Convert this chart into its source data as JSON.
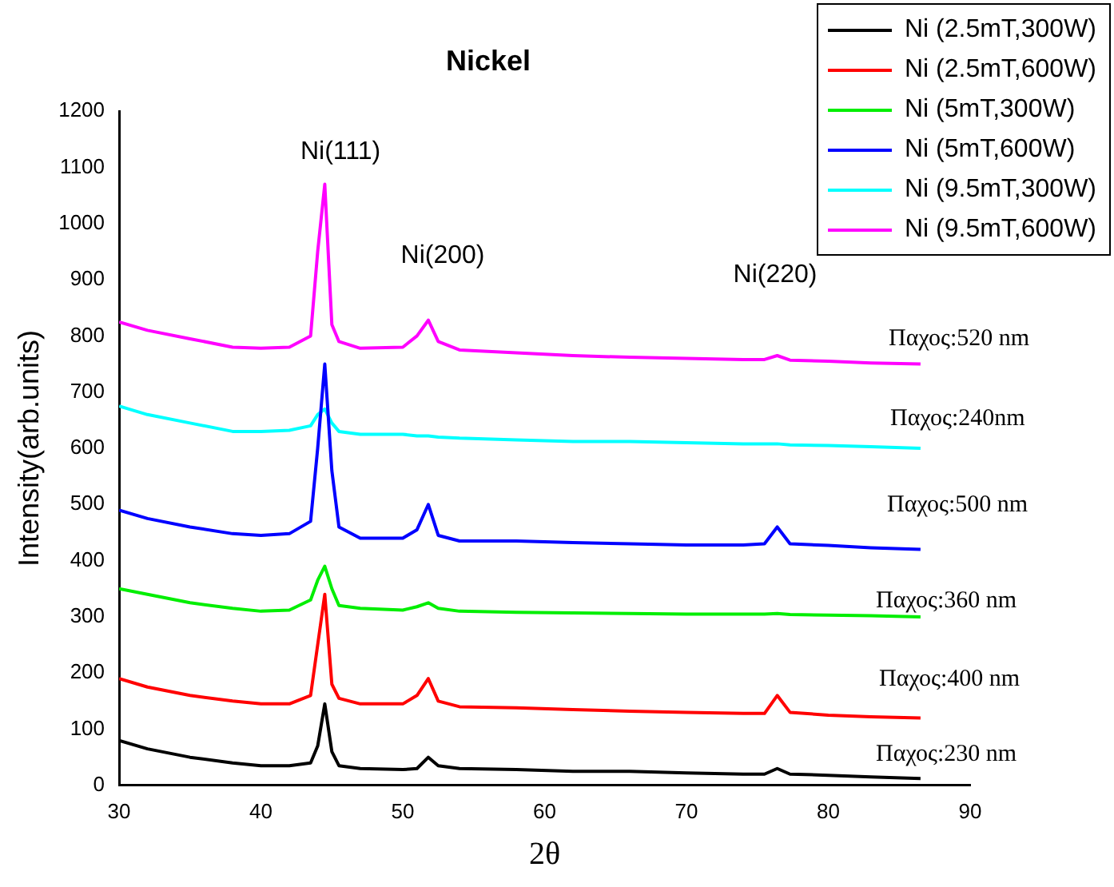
{
  "chart_data": {
    "type": "line",
    "title": "Nickel",
    "xlabel": "2θ",
    "ylabel": "Intensity(arb.units)",
    "x": [
      30,
      32,
      35,
      38,
      40,
      42,
      43.5,
      44,
      44.5,
      45,
      45.5,
      47,
      50,
      51,
      51.8,
      52.5,
      54,
      58,
      62,
      66,
      70,
      74,
      75.5,
      76.4,
      77.3,
      80,
      83,
      86.5
    ],
    "series": [
      {
        "name": "Ni (2.5mT,300W)",
        "color": "#000000",
        "values": [
          80,
          65,
          50,
          40,
          35,
          35,
          40,
          70,
          145,
          60,
          35,
          30,
          28,
          30,
          50,
          35,
          30,
          28,
          25,
          25,
          22,
          20,
          20,
          30,
          20,
          18,
          15,
          12
        ]
      },
      {
        "name": "Ni (2.5mT,600W)",
        "color": "#ff0000",
        "values": [
          190,
          175,
          160,
          150,
          145,
          145,
          160,
          250,
          340,
          180,
          155,
          145,
          145,
          160,
          190,
          150,
          140,
          138,
          135,
          132,
          130,
          128,
          128,
          160,
          130,
          125,
          122,
          120
        ]
      },
      {
        "name": "Ni (5mT,300W)",
        "color": "#00ee00",
        "values": [
          350,
          340,
          325,
          315,
          310,
          312,
          330,
          365,
          390,
          350,
          320,
          315,
          312,
          318,
          325,
          315,
          310,
          308,
          307,
          306,
          305,
          305,
          305,
          306,
          304,
          303,
          302,
          300
        ]
      },
      {
        "name": "Ni (5mT,600W)",
        "color": "#0000ff",
        "values": [
          490,
          475,
          460,
          448,
          445,
          448,
          470,
          600,
          750,
          560,
          460,
          440,
          440,
          455,
          500,
          445,
          435,
          435,
          432,
          430,
          428,
          428,
          430,
          460,
          430,
          427,
          423,
          420
        ]
      },
      {
        "name": "Ni (9.5mT,300W)",
        "color": "#00ffff",
        "values": [
          675,
          660,
          645,
          630,
          630,
          632,
          640,
          660,
          670,
          645,
          630,
          625,
          625,
          622,
          622,
          620,
          618,
          615,
          612,
          612,
          610,
          608,
          608,
          608,
          606,
          605,
          603,
          600
        ]
      },
      {
        "name": "Ni (9.5mT,600W)",
        "color": "#ff00ff",
        "values": [
          825,
          810,
          795,
          780,
          778,
          780,
          800,
          950,
          1070,
          820,
          790,
          778,
          780,
          800,
          828,
          790,
          775,
          770,
          765,
          762,
          760,
          758,
          758,
          765,
          757,
          755,
          752,
          750
        ]
      }
    ],
    "xlim": [
      30,
      90
    ],
    "xticks": [
      30,
      40,
      50,
      60,
      70,
      80,
      90
    ],
    "ylim": [
      0,
      1200
    ],
    "yticks": [
      0,
      100,
      200,
      300,
      400,
      500,
      600,
      700,
      800,
      900,
      1000,
      1100,
      1200
    ],
    "grid": false,
    "legend": "top right",
    "marker": "none",
    "line_style": "solid",
    "annotations": [
      "Ni(111)",
      "Ni(200)",
      "Ni(220)",
      "Παχος:520 nm",
      "Παχος:240nm",
      "Παχος:500 nm",
      "Παχος:360 nm",
      "Παχος:400 nm",
      "Παχος:230 nm"
    ]
  }
}
